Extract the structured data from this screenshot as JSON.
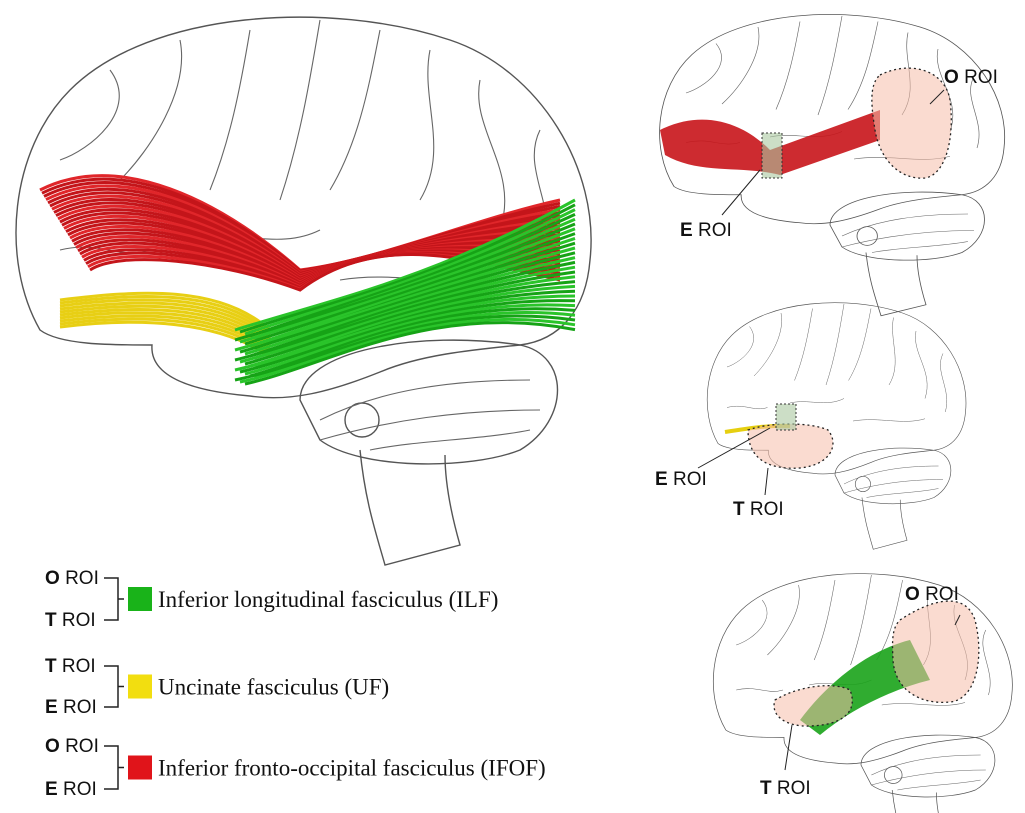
{
  "panels": [
    {
      "labels": [
        {
          "letter": "O",
          "text": "ROI"
        },
        {
          "letter": "E",
          "text": "ROI"
        }
      ]
    },
    {
      "labels": [
        {
          "letter": "E",
          "text": "ROI"
        },
        {
          "letter": "T",
          "text": "ROI"
        }
      ]
    },
    {
      "labels": [
        {
          "letter": "O",
          "text": "ROI"
        },
        {
          "letter": "T",
          "text": "ROI"
        }
      ]
    }
  ],
  "legend": [
    {
      "rois": [
        {
          "letter": "O",
          "text": "ROI"
        },
        {
          "letter": "T",
          "text": "ROI"
        }
      ],
      "color": "#19b319",
      "label": "Inferior longitudinal fasciculus (ILF)"
    },
    {
      "rois": [
        {
          "letter": "T",
          "text": "ROI"
        },
        {
          "letter": "E",
          "text": "ROI"
        }
      ],
      "color": "#f2de10",
      "label": "Uncinate fasciculus (UF)"
    },
    {
      "rois": [
        {
          "letter": "O",
          "text": "ROI"
        },
        {
          "letter": "E",
          "text": "ROI"
        }
      ],
      "color": "#e0141a",
      "label": "Inferior fronto-occipital fasciculus (IFOF)"
    }
  ]
}
